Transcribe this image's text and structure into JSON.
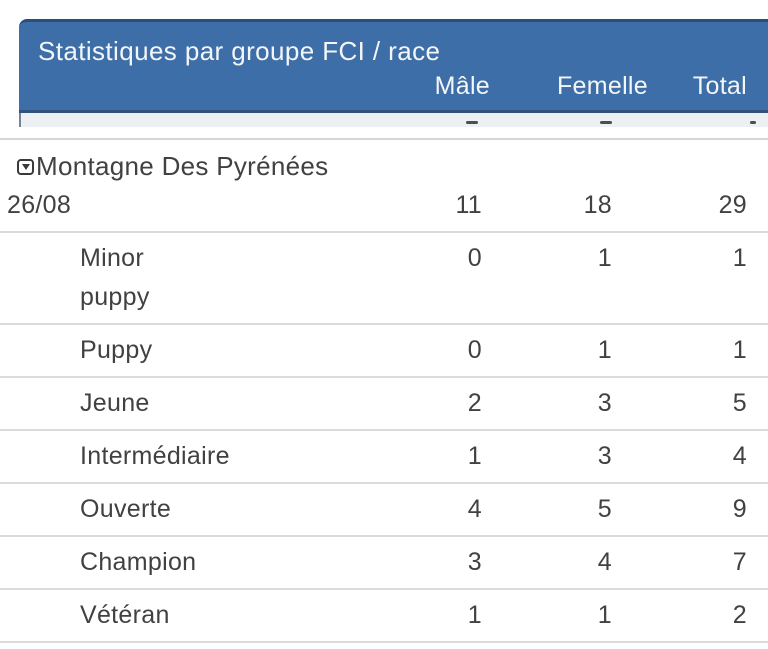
{
  "header": {
    "title": "Statistiques par groupe FCI / race",
    "columns": [
      "Mâle",
      "Femelle",
      "Total"
    ]
  },
  "group": {
    "toggle_icon": "caret-down-square-icon",
    "name": "Montagne Des Pyrénées",
    "date_row": {
      "label": "26/08",
      "male": "11",
      "female": "18",
      "total": "29"
    }
  },
  "rows": [
    {
      "label": "Minor\npuppy",
      "male": "0",
      "female": "1",
      "total": "1"
    },
    {
      "label": "Puppy",
      "male": "0",
      "female": "1",
      "total": "1"
    },
    {
      "label": "Jeune",
      "male": "2",
      "female": "3",
      "total": "5"
    },
    {
      "label": "Intermédiaire",
      "male": "1",
      "female": "3",
      "total": "4"
    },
    {
      "label": "Ouverte",
      "male": "4",
      "female": "5",
      "total": "9"
    },
    {
      "label": "Champion",
      "male": "3",
      "female": "4",
      "total": "7"
    },
    {
      "label": "Vétéran",
      "male": "1",
      "female": "1",
      "total": "2"
    }
  ],
  "colors": {
    "header_bg": "#3e6ea7",
    "header_top_border": "#2a4d7d",
    "header_text": "#f3f6f9",
    "body_text": "#414141",
    "divider": "#dbdbdb",
    "clipped_row_bg": "#edf0f3"
  }
}
